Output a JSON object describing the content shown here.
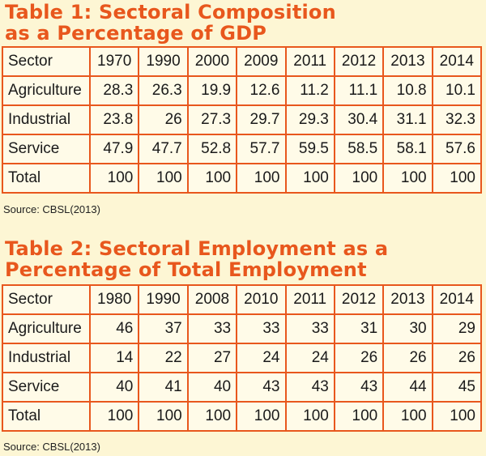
{
  "table1": {
    "title_lines": [
      "Table 1: Sectoral Composition",
      "as a Percentage of GDP"
    ],
    "header": [
      "Sector",
      "1970",
      "1990",
      "2000",
      "2009",
      "2011",
      "2012",
      "2013",
      "2014"
    ],
    "rows": [
      [
        "Agriculture",
        "28.3",
        "26.3",
        "19.9",
        "12.6",
        "11.2",
        "11.1",
        "10.8",
        "10.1"
      ],
      [
        "Industrial",
        "23.8",
        "26",
        "27.3",
        "29.7",
        "29.3",
        "30.4",
        "31.1",
        "32.3"
      ],
      [
        "Service",
        "47.9",
        "47.7",
        "52.8",
        "57.7",
        "59.5",
        "58.5",
        "58.1",
        "57.6"
      ],
      [
        "Total",
        "100",
        "100",
        "100",
        "100",
        "100",
        "100",
        "100",
        "100"
      ]
    ],
    "source": "Source: CBSL(2013)"
  },
  "table2": {
    "title_lines": [
      "Table 2: Sectoral Employment as a",
      "Percentage of Total Employment"
    ],
    "header": [
      "Sector",
      "1980",
      "1990",
      "2008",
      "2010",
      "2011",
      "2012",
      "2013",
      "2014"
    ],
    "rows": [
      [
        "Agriculture",
        "46",
        "37",
        "33",
        "33",
        "33",
        "31",
        "30",
        "29"
      ],
      [
        "Industrial",
        "14",
        "22",
        "27",
        "24",
        "24",
        "26",
        "26",
        "26"
      ],
      [
        "Service",
        "40",
        "41",
        "40",
        "43",
        "43",
        "43",
        "44",
        "45"
      ],
      [
        "Total",
        "100",
        "100",
        "100",
        "100",
        "100",
        "100",
        "100",
        "100"
      ]
    ],
    "source": "Source: CBSL(2013)"
  },
  "colors": {
    "accent": "#e8571d",
    "background": "#fdf6d4"
  }
}
